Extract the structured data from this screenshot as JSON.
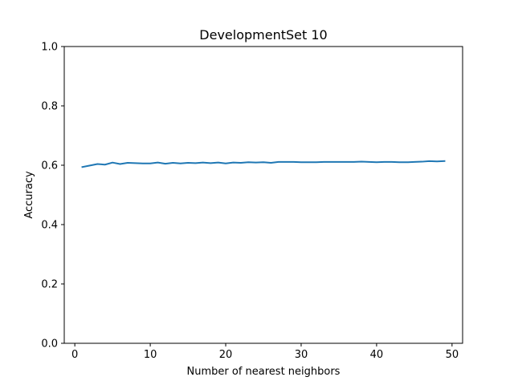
{
  "chart_data": {
    "type": "line",
    "title": "DevelopmentSet 10",
    "xlabel": "Number of nearest neighbors",
    "ylabel": "Accuracy",
    "xlim": [
      -1.4,
      51.4
    ],
    "ylim": [
      0.0,
      1.0
    ],
    "xticks": [
      0,
      10,
      20,
      30,
      40,
      50
    ],
    "xtick_labels": [
      "0",
      "10",
      "20",
      "30",
      "40",
      "50"
    ],
    "yticks": [
      0.0,
      0.2,
      0.4,
      0.6,
      0.8,
      1.0
    ],
    "ytick_labels": [
      "0.0",
      "0.2",
      "0.4",
      "0.6",
      "0.8",
      "1.0"
    ],
    "grid": false,
    "legend": "none",
    "series": [
      {
        "color": "#1f77b4",
        "x": [
          1,
          2,
          3,
          4,
          5,
          6,
          7,
          8,
          9,
          10,
          11,
          12,
          13,
          14,
          15,
          16,
          17,
          18,
          19,
          20,
          21,
          22,
          23,
          24,
          25,
          26,
          27,
          28,
          29,
          30,
          31,
          32,
          33,
          34,
          35,
          36,
          37,
          38,
          39,
          40,
          41,
          42,
          43,
          44,
          45,
          46,
          47,
          48,
          49
        ],
        "y": [
          0.594,
          0.599,
          0.604,
          0.602,
          0.609,
          0.604,
          0.608,
          0.607,
          0.606,
          0.606,
          0.609,
          0.605,
          0.608,
          0.606,
          0.608,
          0.607,
          0.609,
          0.607,
          0.609,
          0.606,
          0.609,
          0.608,
          0.61,
          0.609,
          0.61,
          0.608,
          0.611,
          0.611,
          0.611,
          0.61,
          0.61,
          0.61,
          0.611,
          0.611,
          0.611,
          0.611,
          0.611,
          0.612,
          0.611,
          0.61,
          0.611,
          0.611,
          0.61,
          0.61,
          0.611,
          0.612,
          0.614,
          0.613,
          0.614
        ]
      }
    ]
  }
}
